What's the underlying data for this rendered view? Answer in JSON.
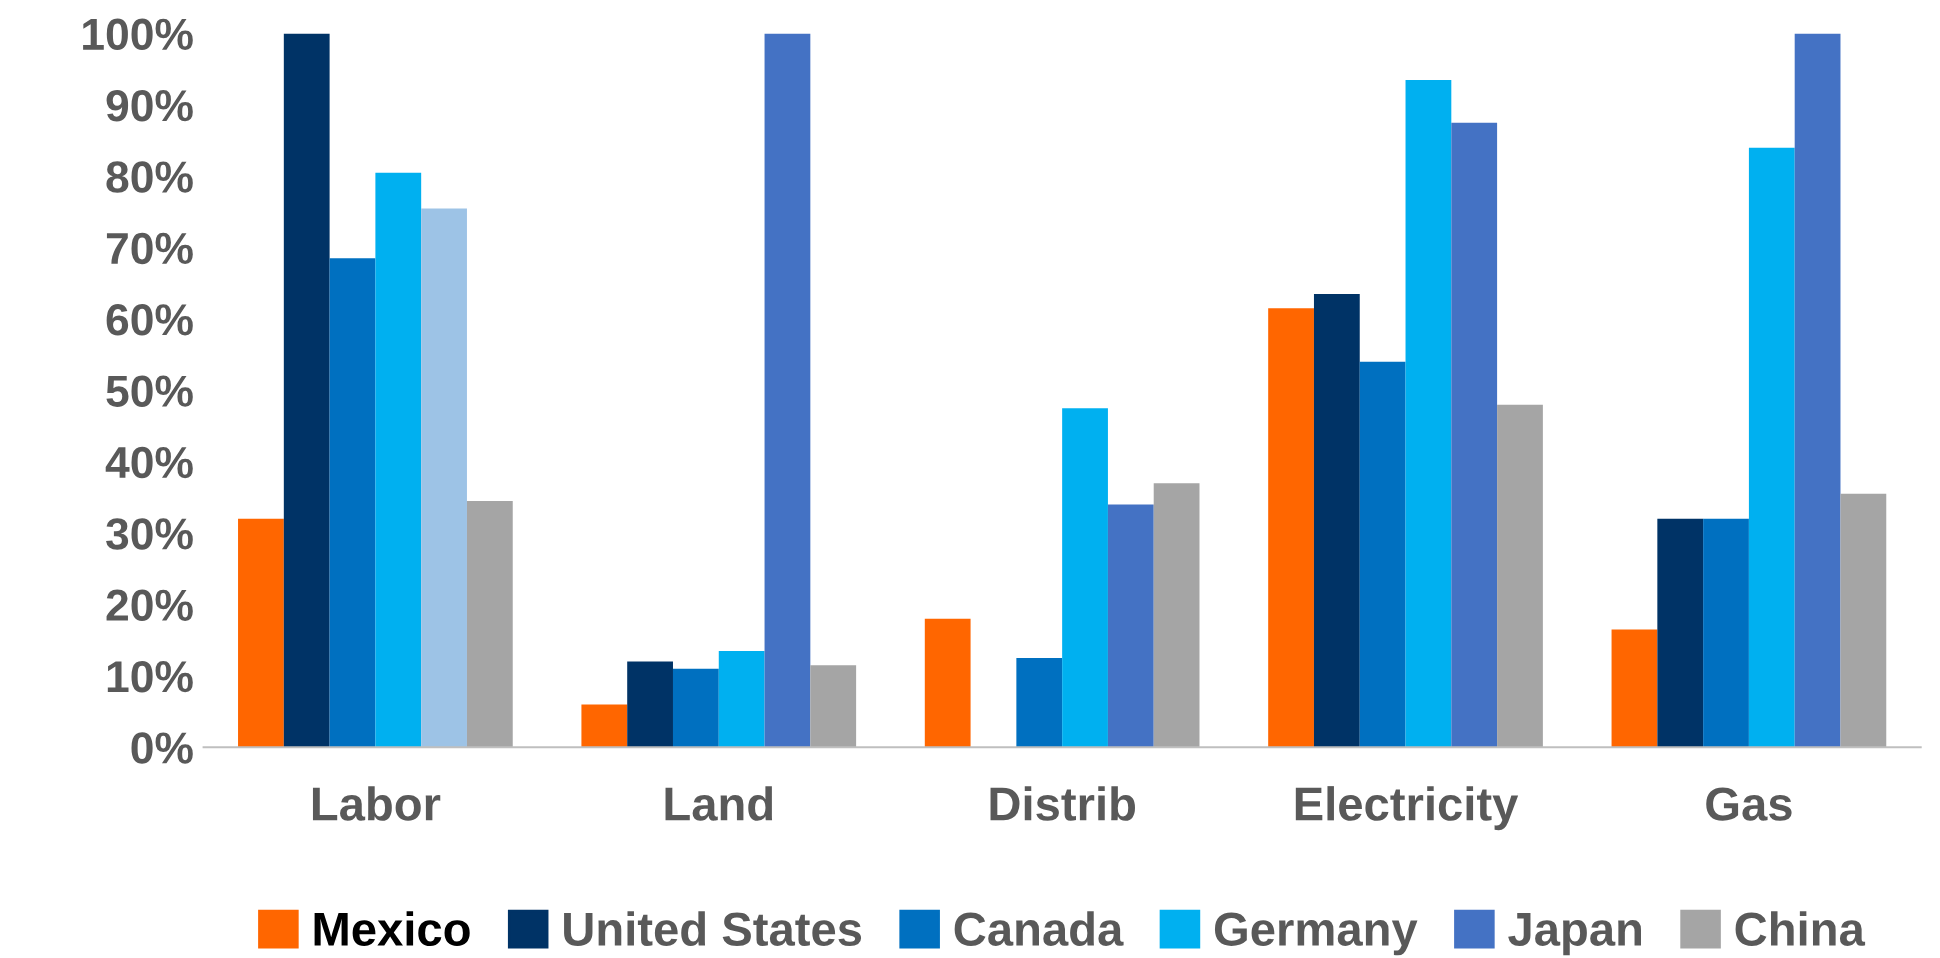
{
  "chart_data": {
    "type": "bar",
    "categories": [
      "Labor",
      "Land",
      "Distrib",
      "Electricity",
      "Gas"
    ],
    "series": [
      {
        "name": "Mexico",
        "color": "#ff6600",
        "values": [
          32,
          6,
          18,
          61.5,
          16.5
        ]
      },
      {
        "name": "United States",
        "color": "#003366",
        "values": [
          100,
          12,
          null,
          63.5,
          32
        ]
      },
      {
        "name": "Canada",
        "color": "#0070c0",
        "values": [
          68.5,
          11,
          12.5,
          54,
          32
        ]
      },
      {
        "name": "Germany",
        "color": "#00b0f0",
        "values": [
          80.5,
          13.5,
          47.5,
          93.5,
          84
        ]
      },
      {
        "name": "Japan",
        "color": "#4472c4",
        "colors": [
          "#9dc3e6",
          "#4472c4",
          "#4472c4",
          "#4472c4",
          "#4472c4"
        ],
        "values": [
          75.5,
          100,
          34,
          87.5,
          100
        ]
      },
      {
        "name": "China",
        "color": "#a5a5a5",
        "values": [
          34.5,
          11.5,
          37,
          48,
          35.5
        ]
      }
    ],
    "ylim": [
      0,
      100
    ],
    "yticks": [
      {
        "value": 0,
        "label": "0%"
      },
      {
        "value": 10,
        "label": "10%"
      },
      {
        "value": 20,
        "label": "20%"
      },
      {
        "value": 30,
        "label": "30%"
      },
      {
        "value": 40,
        "label": "40%"
      },
      {
        "value": 50,
        "label": "50%"
      },
      {
        "value": 60,
        "label": "60%"
      },
      {
        "value": 70,
        "label": "70%"
      },
      {
        "value": 80,
        "label": "80%"
      },
      {
        "value": 90,
        "label": "90%"
      },
      {
        "value": 100,
        "label": "100%"
      }
    ],
    "grid": false,
    "legend": "bottom"
  }
}
